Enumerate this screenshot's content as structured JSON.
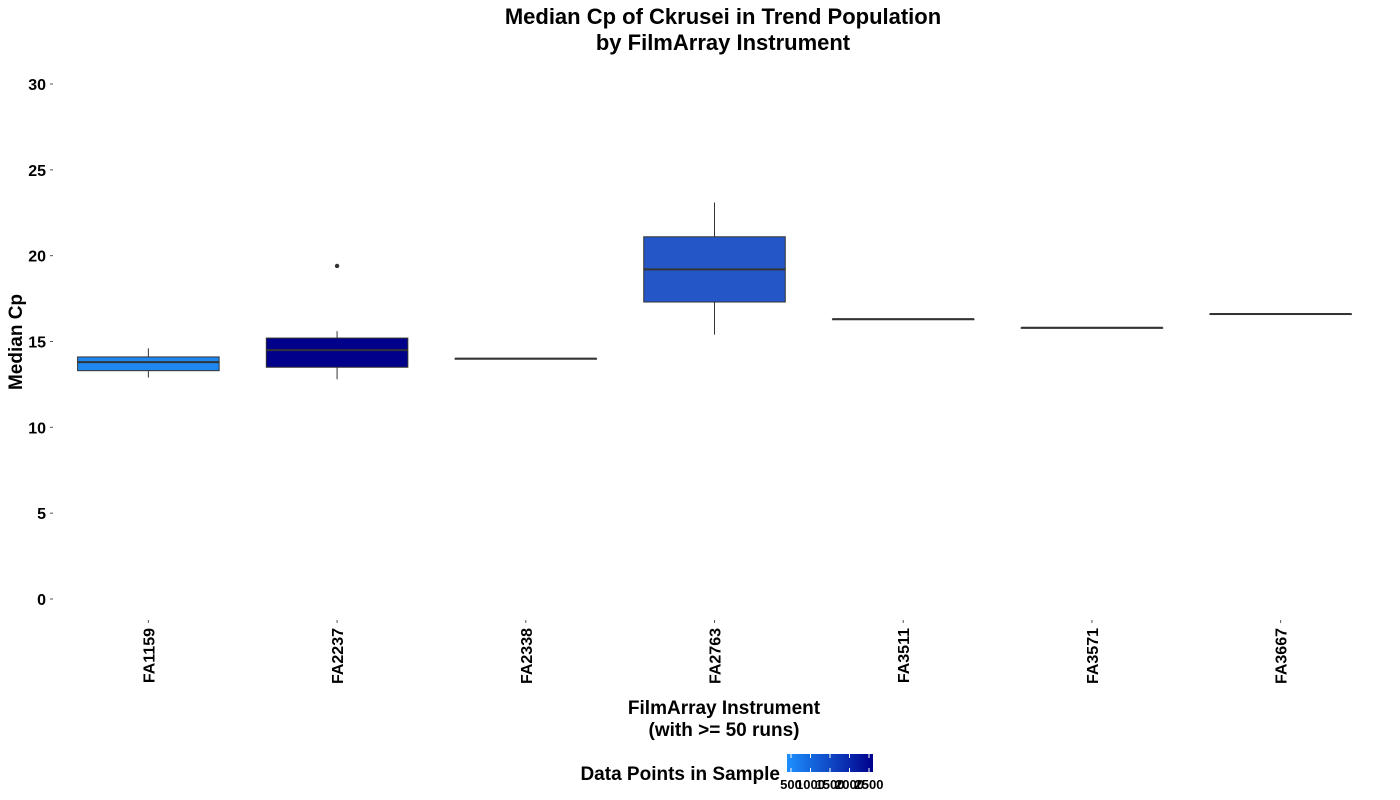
{
  "chart_data": {
    "type": "box",
    "title": "Median Cp of Ckrusei in Trend Population",
    "subtitle": "by FilmArray Instrument",
    "xlabel": "FilmArray Instrument",
    "xlabel_sub": "(with >= 50 runs)",
    "ylabel": "Median Cp",
    "ylim": [
      0,
      30
    ],
    "yticks": [
      0,
      5,
      10,
      15,
      20,
      25,
      30
    ],
    "grid": false,
    "legend": {
      "title": "Data Points in Sample",
      "placement": "bottom",
      "ticks": [
        "500",
        "1000",
        "1500",
        "2000",
        "2500"
      ],
      "color_low": "#1E90FF",
      "color_high": "#00008B"
    },
    "categories": [
      "FA1159",
      "FA2237",
      "FA2338",
      "FA2763",
      "FA3511",
      "FA3571",
      "FA3667"
    ],
    "boxes": [
      {
        "category": "FA1159",
        "min": 12.9,
        "q1": 13.3,
        "median": 13.8,
        "q3": 14.1,
        "max": 14.6,
        "outliers": [],
        "fill": "#1E88F0"
      },
      {
        "category": "FA2237",
        "min": 12.8,
        "q1": 13.5,
        "median": 14.5,
        "q3": 15.2,
        "max": 15.6,
        "outliers": [
          19.4
        ],
        "fill": "#00008B"
      },
      {
        "category": "FA2338",
        "min": 14.0,
        "q1": 14.0,
        "median": 14.0,
        "q3": 14.0,
        "max": 14.0,
        "outliers": [],
        "fill": "#1E8FFE"
      },
      {
        "category": "FA2763",
        "min": 15.4,
        "q1": 17.3,
        "median": 19.2,
        "q3": 21.1,
        "max": 23.1,
        "outliers": [],
        "fill": "#2456C8"
      },
      {
        "category": "FA3511",
        "min": 16.3,
        "q1": 16.3,
        "median": 16.3,
        "q3": 16.3,
        "max": 16.3,
        "outliers": [],
        "fill": "#1E8FFE"
      },
      {
        "category": "FA3571",
        "min": 15.8,
        "q1": 15.8,
        "median": 15.8,
        "q3": 15.8,
        "max": 15.8,
        "outliers": [],
        "fill": "#1E8FFE"
      },
      {
        "category": "FA3667",
        "min": 16.6,
        "q1": 16.6,
        "median": 16.6,
        "q3": 16.6,
        "max": 16.6,
        "outliers": [],
        "fill": "#1E8FFE"
      }
    ]
  }
}
